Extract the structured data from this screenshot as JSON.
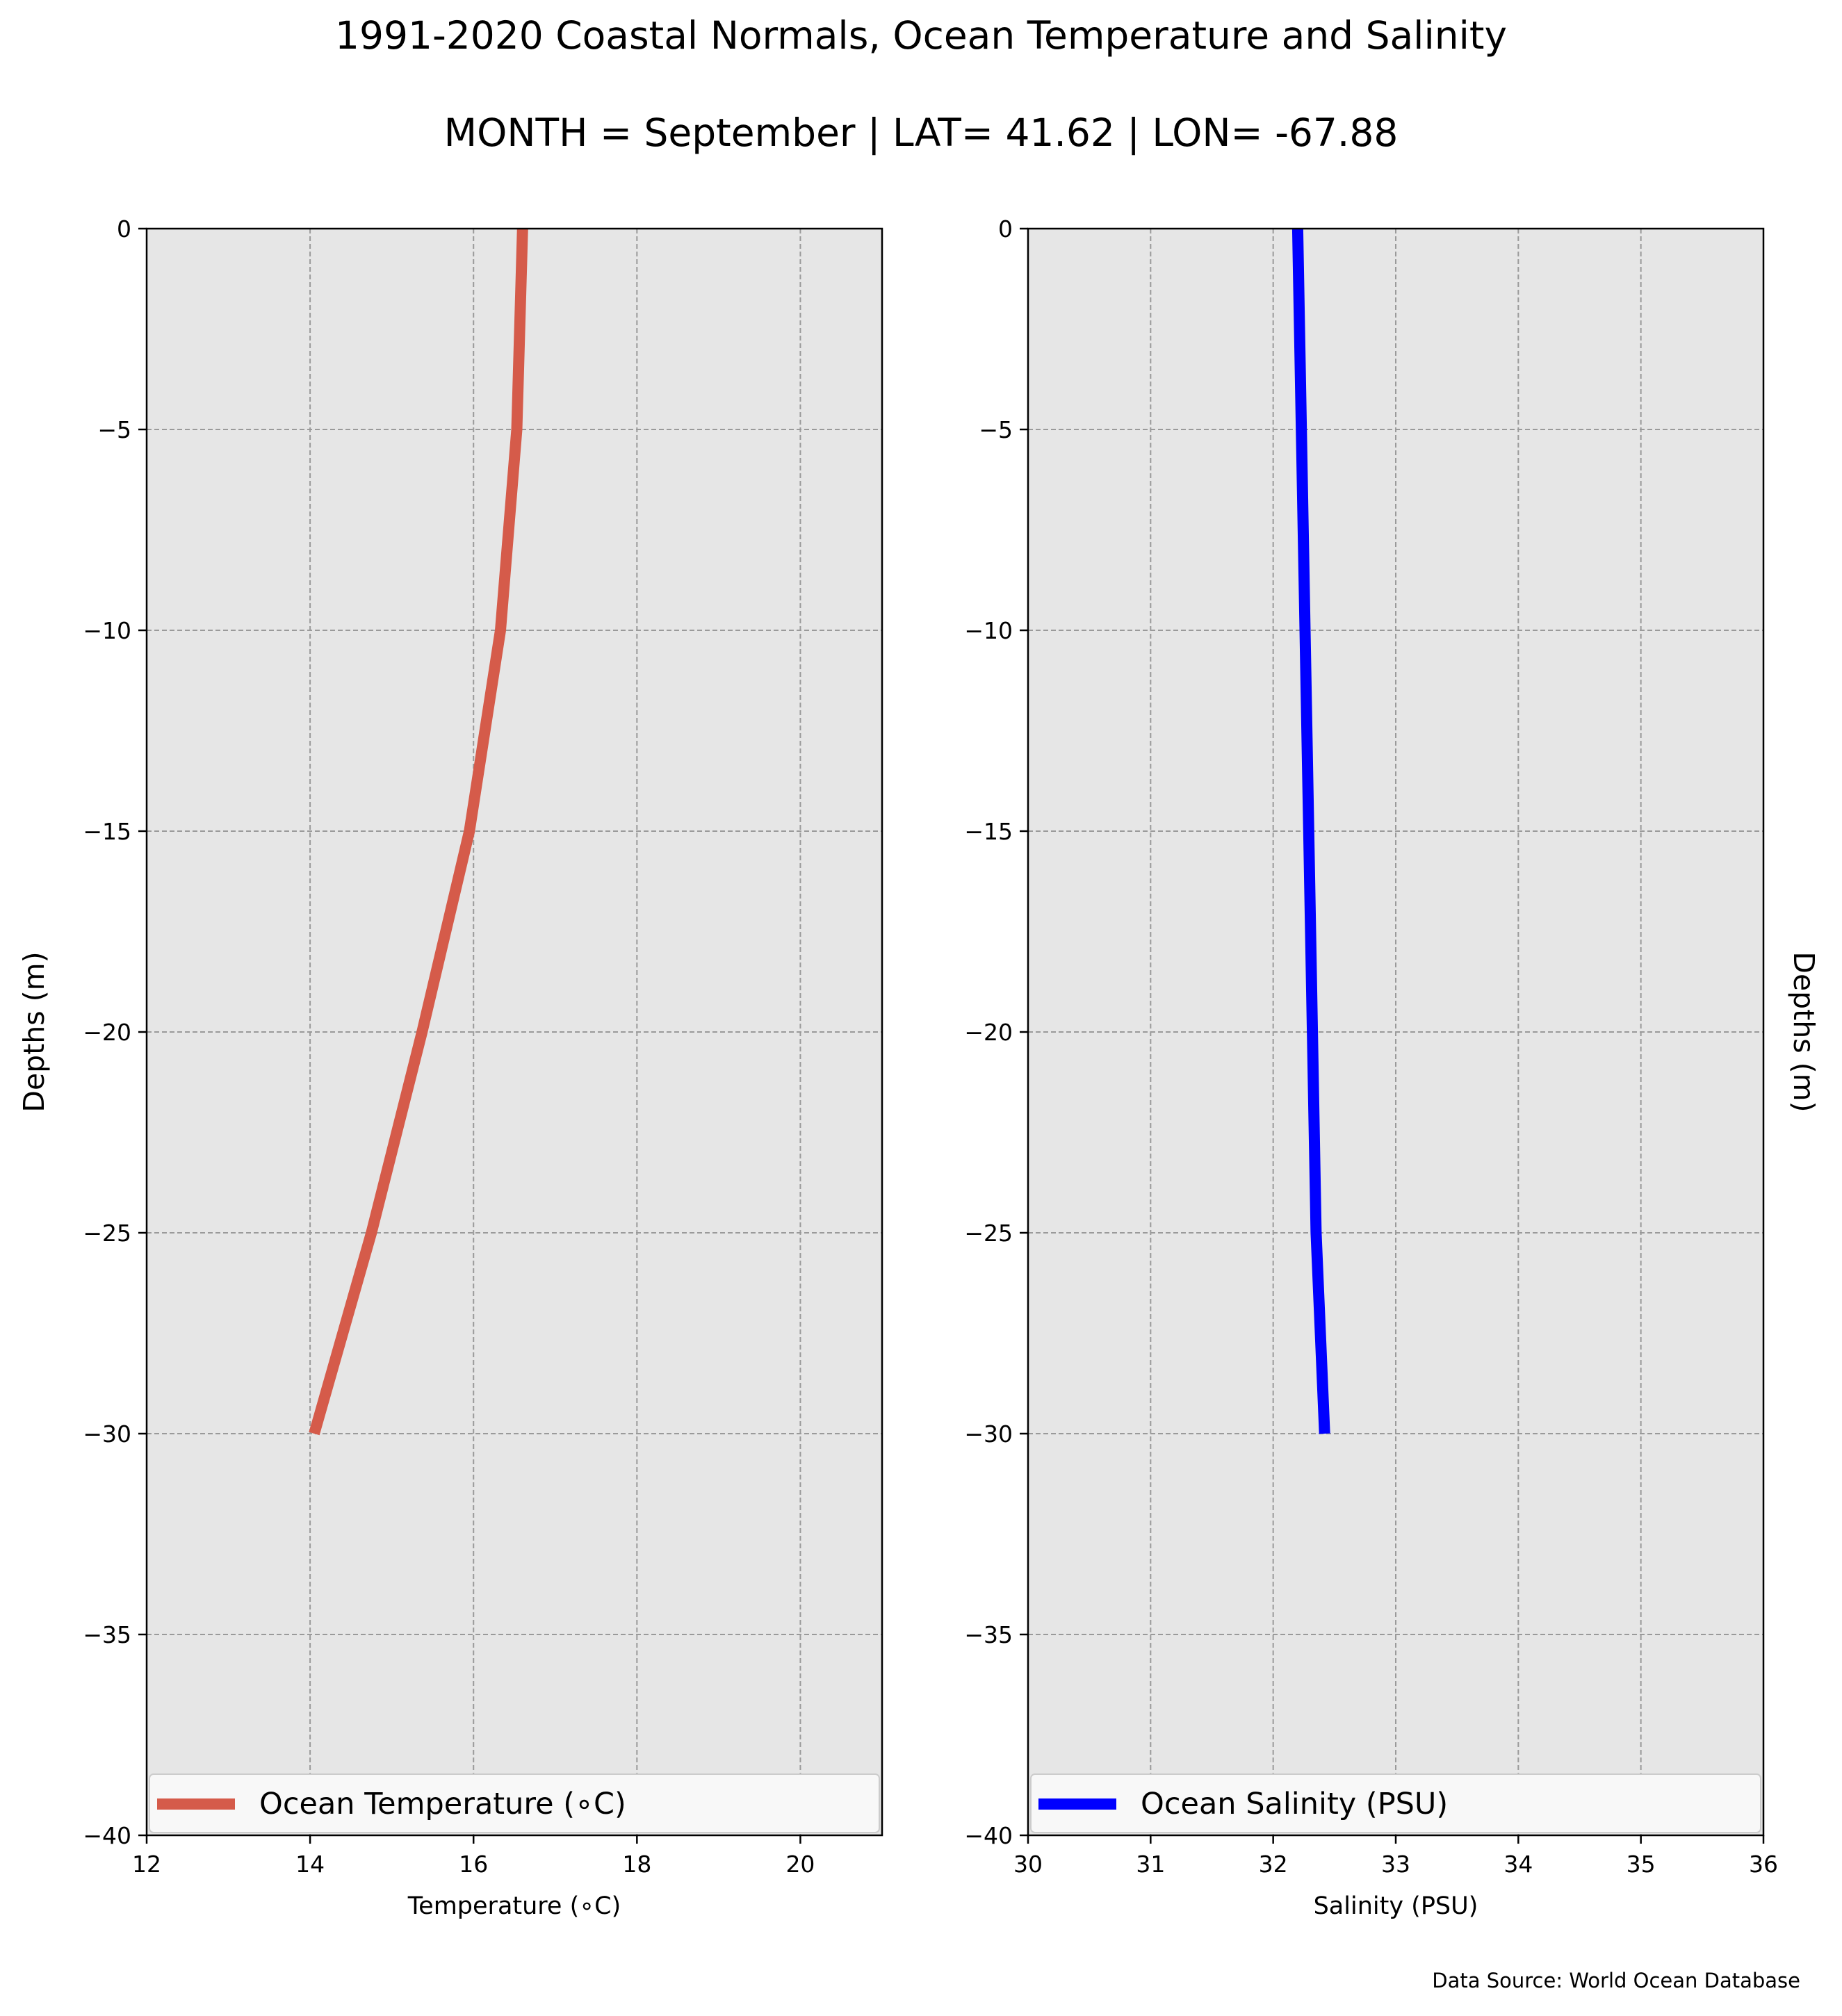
{
  "figure": {
    "title": "1991-2020 Coastal Normals, Ocean Temperature and Salinity",
    "subtitle": "MONTH = September | LAT= 41.62 | LON= -67.88",
    "source": "Data Source: World Ocean Database"
  },
  "chart_data": [
    {
      "type": "line",
      "xlabel": "Temperature (∘C)",
      "ylabel": "Depths (m)",
      "xlim": [
        12,
        21
      ],
      "ylim": [
        -40,
        0
      ],
      "xticks": [
        12,
        14,
        16,
        18,
        20
      ],
      "xtick_labels": [
        "12",
        "14",
        "16",
        "18",
        "20"
      ],
      "yticks": [
        0,
        -5,
        -10,
        -15,
        -20,
        -25,
        -30,
        -35,
        -40
      ],
      "ytick_labels": [
        "0",
        "−5",
        "−10",
        "−15",
        "−20",
        "−25",
        "−30",
        "−35",
        "−40"
      ],
      "grid": true,
      "legend": "lower center",
      "series": [
        {
          "name": "Ocean Temperature (∘C)",
          "color": "#d55b4a",
          "x": [
            16.6,
            16.53,
            16.33,
            15.95,
            15.37,
            14.75,
            14.05
          ],
          "y": [
            0,
            -5,
            -10,
            -15,
            -20,
            -25,
            -30
          ]
        }
      ]
    },
    {
      "type": "line",
      "xlabel": "Salinity (PSU)",
      "ylabel": "Depths (m)",
      "xlim": [
        30,
        36
      ],
      "ylim": [
        -40,
        0
      ],
      "xticks": [
        30,
        31,
        32,
        33,
        34,
        35,
        36
      ],
      "xtick_labels": [
        "30",
        "31",
        "32",
        "33",
        "34",
        "35",
        "36"
      ],
      "yticks": [
        0,
        -5,
        -10,
        -15,
        -20,
        -25,
        -30,
        -35,
        -40
      ],
      "ytick_labels": [
        "0",
        "−5",
        "−10",
        "−15",
        "−20",
        "−25",
        "−30",
        "−35",
        "−40"
      ],
      "grid": true,
      "legend": "lower center",
      "series": [
        {
          "name": "Ocean Salinity (PSU)",
          "color": "#0000ff",
          "x": [
            32.2,
            32.23,
            32.26,
            32.29,
            32.32,
            32.35,
            32.42
          ],
          "y": [
            0,
            -5,
            -10,
            -15,
            -20,
            -25,
            -30
          ]
        }
      ]
    }
  ]
}
